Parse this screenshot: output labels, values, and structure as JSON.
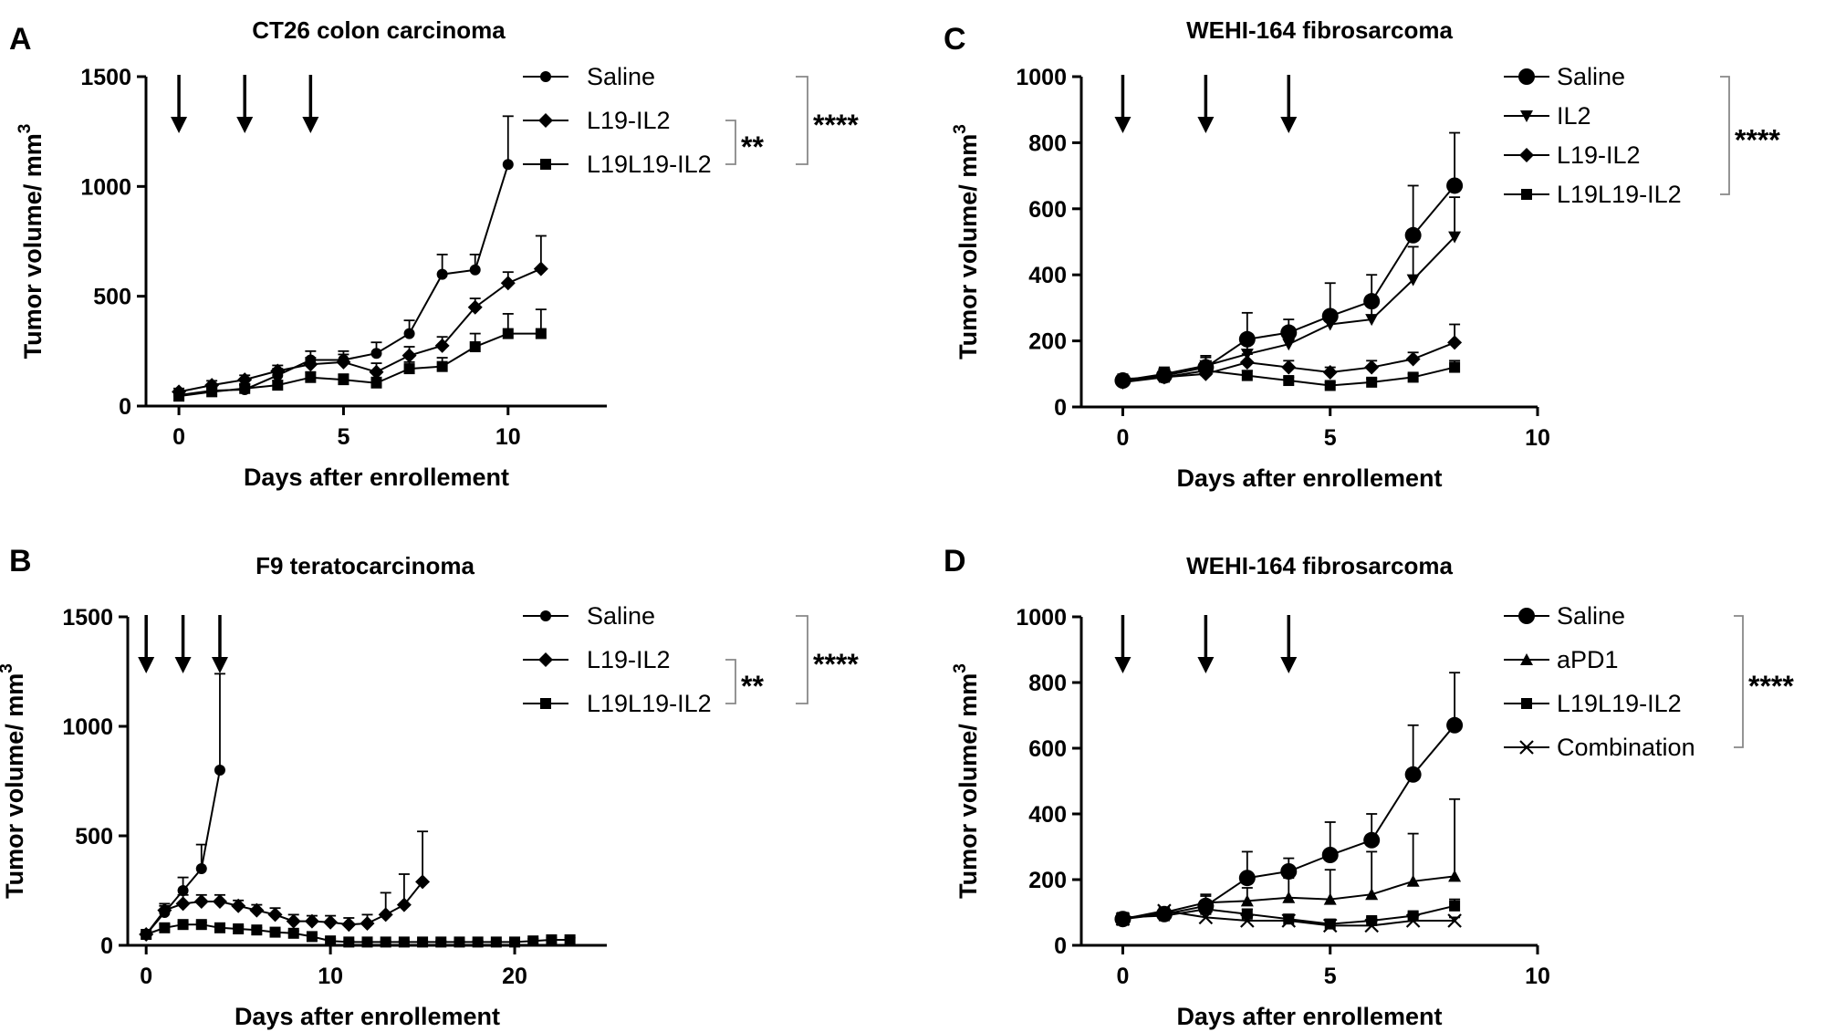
{
  "chart_data": [
    {
      "panel": "A",
      "type": "line",
      "title": "CT26 colon carcinoma",
      "xlabel": "Days after enrollement",
      "ylabel": "Tumor volume/ mm",
      "ylabel_superscript": "3",
      "xlim": [
        -1,
        13
      ],
      "ylim": [
        0,
        1500
      ],
      "xticks": [
        0,
        5,
        10
      ],
      "yticks": [
        0,
        500,
        1000,
        1500
      ],
      "arrows_at": [
        0,
        2,
        4
      ],
      "series": [
        {
          "name": "Saline",
          "marker": "circle",
          "x": [
            0,
            1,
            2,
            3,
            4,
            5,
            6,
            7,
            8,
            9,
            10
          ],
          "y": [
            50,
            70,
            75,
            140,
            210,
            210,
            240,
            330,
            600,
            620,
            1100
          ],
          "err": [
            15,
            15,
            20,
            30,
            40,
            40,
            50,
            60,
            90,
            70,
            220
          ]
        },
        {
          "name": "L19-IL2",
          "marker": "diamond",
          "x": [
            0,
            1,
            2,
            3,
            4,
            5,
            6,
            7,
            8,
            9,
            10,
            11
          ],
          "y": [
            65,
            95,
            120,
            160,
            190,
            200,
            155,
            230,
            275,
            450,
            560,
            625
          ],
          "err": [
            15,
            20,
            20,
            25,
            30,
            35,
            40,
            40,
            40,
            40,
            50,
            150
          ]
        },
        {
          "name": "L19L19-IL2",
          "marker": "square",
          "x": [
            0,
            1,
            2,
            3,
            4,
            5,
            6,
            7,
            8,
            9,
            10,
            11
          ],
          "y": [
            45,
            65,
            80,
            95,
            130,
            120,
            105,
            170,
            180,
            270,
            330,
            330
          ],
          "err": [
            10,
            15,
            20,
            20,
            25,
            25,
            25,
            30,
            40,
            60,
            90,
            110
          ]
        }
      ],
      "significance": [
        {
          "label": "**",
          "between": [
            "L19-IL2",
            "L19L19-IL2"
          ]
        },
        {
          "label": "****",
          "between": [
            "Saline",
            "L19L19-IL2"
          ]
        }
      ]
    },
    {
      "panel": "B",
      "type": "line",
      "title": "F9 teratocarcinoma",
      "xlabel": "Days after enrollement",
      "ylabel": "Tumor volume/ mm",
      "ylabel_superscript": "3",
      "xlim": [
        -1,
        25
      ],
      "ylim": [
        0,
        1500
      ],
      "xticks": [
        0,
        10,
        20
      ],
      "yticks": [
        0,
        500,
        1000,
        1500
      ],
      "arrows_at": [
        0,
        2,
        4
      ],
      "series": [
        {
          "name": "Saline",
          "marker": "circle",
          "x": [
            0,
            1,
            2,
            3,
            4
          ],
          "y": [
            50,
            150,
            250,
            350,
            800
          ],
          "err": [
            10,
            30,
            60,
            110,
            440
          ]
        },
        {
          "name": "L19-IL2",
          "marker": "diamond",
          "x": [
            0,
            1,
            2,
            3,
            4,
            5,
            6,
            7,
            8,
            9,
            10,
            11,
            12,
            13,
            14,
            15
          ],
          "y": [
            50,
            160,
            190,
            200,
            200,
            180,
            160,
            140,
            110,
            110,
            105,
            95,
            100,
            140,
            185,
            290
          ],
          "err": [
            10,
            30,
            40,
            30,
            30,
            25,
            25,
            30,
            30,
            25,
            30,
            30,
            40,
            100,
            140,
            230
          ]
        },
        {
          "name": "L19L19-IL2",
          "marker": "square",
          "x": [
            0,
            1,
            2,
            3,
            4,
            5,
            6,
            7,
            8,
            9,
            10,
            11,
            12,
            13,
            14,
            15,
            16,
            17,
            18,
            19,
            20,
            21,
            22,
            23
          ],
          "y": [
            50,
            80,
            95,
            95,
            80,
            75,
            70,
            60,
            55,
            40,
            20,
            15,
            15,
            15,
            15,
            15,
            15,
            15,
            15,
            15,
            15,
            20,
            25,
            25
          ],
          "err": [
            10,
            15,
            10,
            10,
            10,
            10,
            10,
            10,
            10,
            10,
            10,
            5,
            5,
            5,
            5,
            5,
            5,
            5,
            5,
            5,
            5,
            10,
            10,
            10
          ]
        }
      ],
      "significance": [
        {
          "label": "**",
          "between": [
            "L19-IL2",
            "L19L19-IL2"
          ]
        },
        {
          "label": "****",
          "between": [
            "Saline",
            "L19L19-IL2"
          ]
        }
      ]
    },
    {
      "panel": "C",
      "type": "line",
      "title": "WEHI-164 fibrosarcoma",
      "xlabel": "Days after enrollement",
      "ylabel": "Tumor volume/ mm",
      "ylabel_superscript": "3",
      "xlim": [
        -1,
        10
      ],
      "ylim": [
        0,
        1000
      ],
      "xticks": [
        0,
        5,
        10
      ],
      "yticks": [
        0,
        200,
        400,
        600,
        800,
        1000
      ],
      "arrows_at": [
        0,
        2,
        4
      ],
      "series": [
        {
          "name": "Saline",
          "marker": "circle-large",
          "x": [
            0,
            1,
            2,
            3,
            4,
            5,
            6,
            7,
            8
          ],
          "y": [
            80,
            95,
            120,
            205,
            225,
            275,
            320,
            520,
            670
          ],
          "err": [
            10,
            20,
            35,
            80,
            40,
            100,
            80,
            150,
            160
          ]
        },
        {
          "name": "IL2",
          "marker": "triangle-down",
          "x": [
            0,
            1,
            2,
            3,
            4,
            5,
            6,
            7,
            8
          ],
          "y": [
            80,
            100,
            125,
            160,
            190,
            250,
            265,
            385,
            515
          ],
          "err": [
            10,
            20,
            25,
            30,
            30,
            40,
            40,
            100,
            120
          ]
        },
        {
          "name": "L19-IL2",
          "marker": "diamond",
          "x": [
            0,
            1,
            2,
            3,
            4,
            5,
            6,
            7,
            8
          ],
          "y": [
            75,
            90,
            100,
            135,
            120,
            105,
            120,
            145,
            195
          ],
          "err": [
            10,
            15,
            20,
            25,
            20,
            15,
            20,
            20,
            55
          ]
        },
        {
          "name": "L19L19-IL2",
          "marker": "square",
          "x": [
            0,
            1,
            2,
            3,
            4,
            5,
            6,
            7,
            8
          ],
          "y": [
            85,
            90,
            110,
            95,
            80,
            65,
            75,
            90,
            120
          ],
          "err": [
            10,
            10,
            10,
            15,
            10,
            10,
            10,
            10,
            20
          ]
        }
      ],
      "significance": [
        {
          "label": "****",
          "between": [
            "Saline",
            "L19L19-IL2"
          ]
        }
      ]
    },
    {
      "panel": "D",
      "type": "line",
      "title": "WEHI-164 fibrosarcoma",
      "xlabel": "Days after enrollement",
      "ylabel": "Tumor volume/ mm",
      "ylabel_superscript": "3",
      "xlim": [
        -1,
        10
      ],
      "ylim": [
        0,
        1000
      ],
      "xticks": [
        0,
        5,
        10
      ],
      "yticks": [
        0,
        200,
        400,
        600,
        800,
        1000
      ],
      "arrows_at": [
        0,
        2,
        4
      ],
      "series": [
        {
          "name": "Saline",
          "marker": "circle-large",
          "x": [
            0,
            1,
            2,
            3,
            4,
            5,
            6,
            7,
            8
          ],
          "y": [
            80,
            95,
            120,
            205,
            225,
            275,
            320,
            520,
            670
          ],
          "err": [
            10,
            20,
            35,
            80,
            40,
            100,
            80,
            150,
            160
          ]
        },
        {
          "name": "aPD1",
          "marker": "triangle-up",
          "x": [
            0,
            1,
            2,
            3,
            4,
            5,
            6,
            7,
            8
          ],
          "y": [
            80,
            100,
            130,
            135,
            145,
            140,
            155,
            195,
            210
          ],
          "err": [
            10,
            15,
            20,
            40,
            60,
            90,
            130,
            145,
            235
          ]
        },
        {
          "name": "L19L19-IL2",
          "marker": "square",
          "x": [
            0,
            1,
            2,
            3,
            4,
            5,
            6,
            7,
            8
          ],
          "y": [
            85,
            90,
            110,
            95,
            80,
            65,
            75,
            90,
            120
          ],
          "err": [
            10,
            10,
            10,
            15,
            10,
            10,
            10,
            10,
            20
          ]
        },
        {
          "name": "Combination",
          "marker": "x",
          "x": [
            0,
            1,
            2,
            3,
            4,
            5,
            6,
            7,
            8
          ],
          "y": [
            80,
            105,
            85,
            75,
            75,
            60,
            60,
            75,
            75
          ],
          "err": [
            5,
            10,
            10,
            10,
            10,
            10,
            10,
            10,
            10
          ]
        }
      ],
      "significance": [
        {
          "label": "****",
          "between": [
            "Saline",
            "Combination"
          ]
        }
      ]
    }
  ]
}
